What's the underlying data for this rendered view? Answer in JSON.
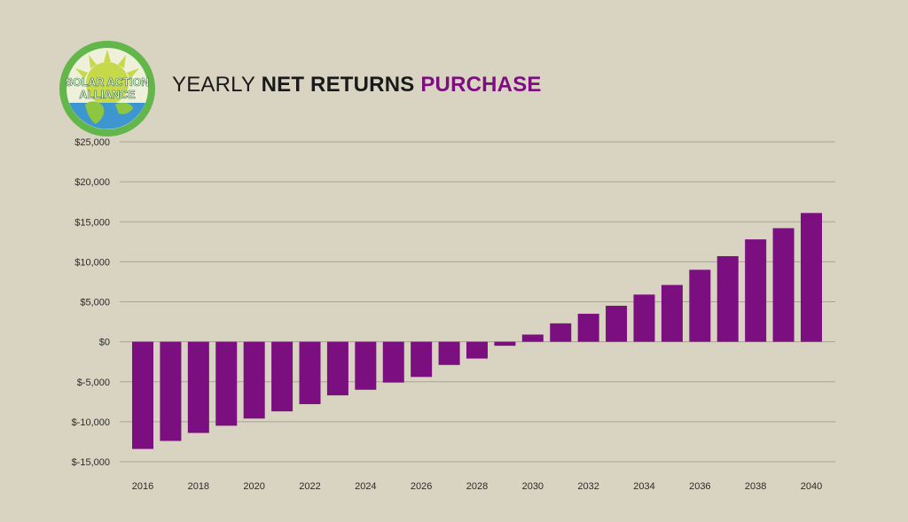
{
  "header": {
    "logo_text_line1": "SOLAR ACTION",
    "logo_text_line2": "ALLIANCE",
    "title_part1": "YEARLY",
    "title_part2": "NET RETURNS",
    "title_part3": "PURCHASE"
  },
  "colors": {
    "bar": "#7c0f7f",
    "title_accent": "#7c0f7f",
    "background": "#d9d3c2",
    "grid": "#a9a394",
    "logo_ring": "#62b64a",
    "logo_sun": "#c6d94a",
    "logo_globe": "#3d96cf"
  },
  "chart_data": {
    "type": "bar",
    "title": "YEARLY NET RETURNS PURCHASE",
    "xlabel": "",
    "ylabel": "",
    "ylim": [
      -15000,
      25000
    ],
    "yticks": [
      25000,
      20000,
      15000,
      10000,
      5000,
      0,
      -5000,
      -10000,
      -15000
    ],
    "ytick_labels": [
      "$25,000",
      "$20,000",
      "$15,000",
      "$10,000",
      "$5,000",
      "$0",
      "$-5,000",
      "$-10,000",
      "$-15,000"
    ],
    "xtick_labels": [
      "2016",
      "2018",
      "2020",
      "2022",
      "2024",
      "2026",
      "2028",
      "2030",
      "2032",
      "2034",
      "2036",
      "2038",
      "2040"
    ],
    "categories": [
      "2016",
      "2017",
      "2018",
      "2019",
      "2020",
      "2021",
      "2022",
      "2023",
      "2024",
      "2025",
      "2026",
      "2027",
      "2028",
      "2029",
      "2030",
      "2031",
      "2032",
      "2033",
      "2034",
      "2035",
      "2036",
      "2037",
      "2038",
      "2039",
      "2040"
    ],
    "values": [
      -13400,
      -12400,
      -11400,
      -10500,
      -9600,
      -8700,
      -7800,
      -6700,
      -6000,
      -5100,
      -4400,
      -2900,
      -2100,
      -500,
      900,
      2300,
      3500,
      4500,
      5900,
      7100,
      9000,
      10700,
      12800,
      14200,
      16100
    ],
    "grid": true,
    "legend": "none"
  }
}
